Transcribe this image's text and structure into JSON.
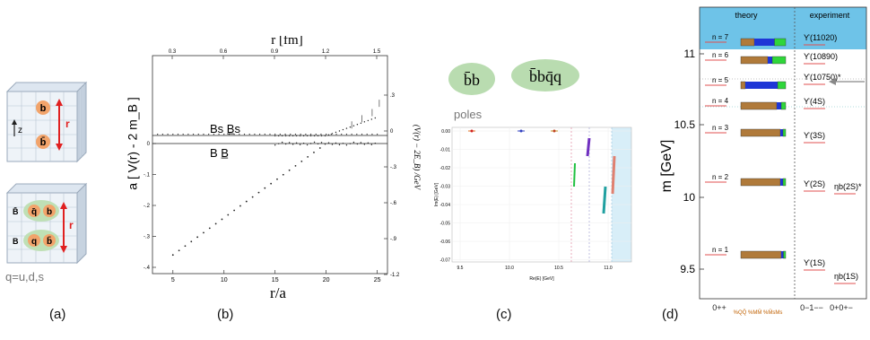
{
  "panel_a": {
    "caption": "(a)",
    "cube1": {
      "quark_top": "b",
      "quark_bottom": "b̄",
      "axis_label": "z",
      "distance_label": "r"
    },
    "cube2": {
      "pair1_a": "b̄",
      "pair1_b": "q̄",
      "pair1_c": "b",
      "pair2_a": "q",
      "pair2_b": "b̄",
      "left_label_top": "B̄",
      "left_label_bottom": "B",
      "distance_label": "r"
    },
    "flavors": "q=u,d,s",
    "colors": {
      "b_quark": "#f2a46b",
      "light_quark": "#bfe0b5",
      "arrow": "#e02020"
    }
  },
  "panel_b": {
    "caption": "(b)",
    "top_axis_label": "r [fm]",
    "top_ticks": [
      "0.3",
      "0.6",
      "0.9",
      "1.2",
      "1.5"
    ],
    "left_axis_label": "a [ V(r) - 2 m_B ]",
    "right_axis_label": "(V(r) − 2E_B) /GeV",
    "x_axis_label": "r/a",
    "x_ticks": [
      "5",
      "10",
      "15",
      "20",
      "25"
    ],
    "y_ticks": [
      "0",
      "-.1",
      "-.2",
      "-.3",
      "-.4"
    ],
    "right_ticks": [
      ".3",
      "0",
      "-.3",
      "-.6",
      "-.9",
      "-1.2"
    ],
    "label_bs": "Bs B̲s",
    "label_b": "B B̲"
  },
  "panel_c": {
    "caption": "(c)",
    "bubble1": "b̄b",
    "bubble2": "b̄bq̄q",
    "poles_label": "poles",
    "x_axis_label": "Re(E) [GeV]",
    "y_axis_label": "Im(E) [GeV]",
    "x_ticks": [
      "9.5",
      "10.0",
      "10.5",
      "11.0"
    ],
    "y_ticks": [
      "0.00",
      "-0.01",
      "-0.02",
      "-0.03",
      "-0.04",
      "-0.05",
      "-0.06",
      "-0.07"
    ],
    "bubble_color": "#b9dcb0"
  },
  "panel_d": {
    "caption": "(d)",
    "header_theory": "theory",
    "header_experiment": "experiment",
    "y_axis_label": "m [GeV]",
    "y_ticks": [
      "11",
      "10.5",
      "10",
      "9.5"
    ],
    "levels": [
      "n = 7",
      "n = 6",
      "n = 5",
      "n = 4",
      "n = 3",
      "n = 2",
      "n = 1"
    ],
    "experiment_states": [
      "ϒ(11020)",
      "ϒ(10890)",
      "ϒ(10750)*",
      "ϒ(4S)",
      "ϒ(3S)",
      "ϒ(2S)",
      "ηb(2S)*",
      "ϒ(1S)",
      "ηb(1S)"
    ],
    "bottom_labels": [
      "0++",
      "%QQ̄ %MM̄ %M̄sMs",
      "0−1−−",
      "0+0+−"
    ],
    "colors": {
      "header": "#6ec3e8",
      "qq": "#b07a3a",
      "mm": "#1f36d6",
      "msms": "#2fd63a",
      "level_line": "#e05050"
    }
  }
}
